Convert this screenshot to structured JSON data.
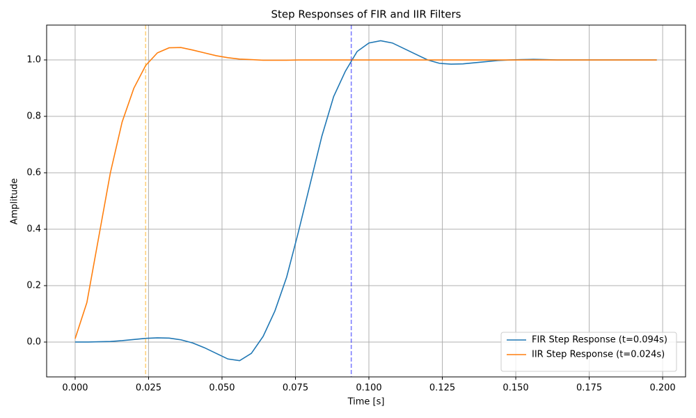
{
  "chart_data": {
    "type": "line",
    "title": "Step Responses of FIR and IIR Filters",
    "x_label": "Time [s]",
    "y_label": "Amplitude",
    "x": [
      0,
      0.004,
      0.008,
      0.012,
      0.016,
      0.02,
      0.024,
      0.028,
      0.032,
      0.036,
      0.04,
      0.044,
      0.048,
      0.052,
      0.056,
      0.06,
      0.064,
      0.068,
      0.072,
      0.076,
      0.08,
      0.084,
      0.088,
      0.092,
      0.096,
      0.1,
      0.104,
      0.108,
      0.112,
      0.116,
      0.12,
      0.124,
      0.128,
      0.132,
      0.136,
      0.14,
      0.144,
      0.148,
      0.152,
      0.156,
      0.16,
      0.164,
      0.168,
      0.172,
      0.176,
      0.18,
      0.184,
      0.188,
      0.192,
      0.196,
      0.198
    ],
    "series": [
      {
        "name": "FIR Step Response (t=0.094s)",
        "color": "#1f77b4",
        "values": [
          0,
          0,
          0.001,
          0.002,
          0.005,
          0.009,
          0.013,
          0.015,
          0.014,
          0.008,
          -0.003,
          -0.02,
          -0.04,
          -0.06,
          -0.066,
          -0.04,
          0.02,
          0.11,
          0.23,
          0.39,
          0.56,
          0.73,
          0.87,
          0.96,
          1.03,
          1.06,
          1.068,
          1.06,
          1.04,
          1.02,
          1.0,
          0.988,
          0.985,
          0.986,
          0.99,
          0.994,
          0.998,
          1.0,
          1.001,
          1.002,
          1.001,
          1,
          1,
          1,
          1,
          1,
          1,
          1,
          1,
          1,
          1
        ]
      },
      {
        "name": "IIR Step Response (t=0.024s)",
        "color": "#ff7f0e",
        "values": [
          0.012,
          0.14,
          0.37,
          0.6,
          0.78,
          0.9,
          0.98,
          1.025,
          1.043,
          1.044,
          1.035,
          1.025,
          1.015,
          1.008,
          1.003,
          1.001,
          0.999,
          0.999,
          0.999,
          1,
          1,
          1,
          1,
          1,
          1,
          1,
          1,
          1,
          1,
          1,
          1,
          1,
          1,
          1,
          1,
          1,
          1,
          1,
          1,
          1,
          1,
          1,
          1,
          1,
          1,
          1,
          1,
          1,
          1,
          1,
          1
        ]
      }
    ],
    "vlines": [
      {
        "value": 0.094,
        "color": "#0000ff",
        "alpha": 0.5
      },
      {
        "value": 0.024,
        "color": "#ffa500",
        "alpha": 0.5
      }
    ],
    "xlim": [
      -0.0097,
      0.2078
    ],
    "ylim": [
      -0.1235,
      1.1235
    ],
    "xticks": [
      {
        "value": 0,
        "label": "0.000"
      },
      {
        "value": 0.025,
        "label": "0.025"
      },
      {
        "value": 0.05,
        "label": "0.050"
      },
      {
        "value": 0.075,
        "label": "0.075"
      },
      {
        "value": 0.1,
        "label": "0.100"
      },
      {
        "value": 0.125,
        "label": "0.125"
      },
      {
        "value": 0.15,
        "label": "0.150"
      },
      {
        "value": 0.175,
        "label": "0.175"
      },
      {
        "value": 0.2,
        "label": "0.200"
      }
    ],
    "yticks": [
      {
        "value": 0,
        "label": "0.0"
      },
      {
        "value": 0.2,
        "label": "0.2"
      },
      {
        "value": 0.4,
        "label": "0.4"
      },
      {
        "value": 0.6,
        "label": "0.6"
      },
      {
        "value": 0.8,
        "label": "0.8"
      },
      {
        "value": 1,
        "label": "1.0"
      }
    ],
    "grid": true,
    "legend": "lower right"
  }
}
